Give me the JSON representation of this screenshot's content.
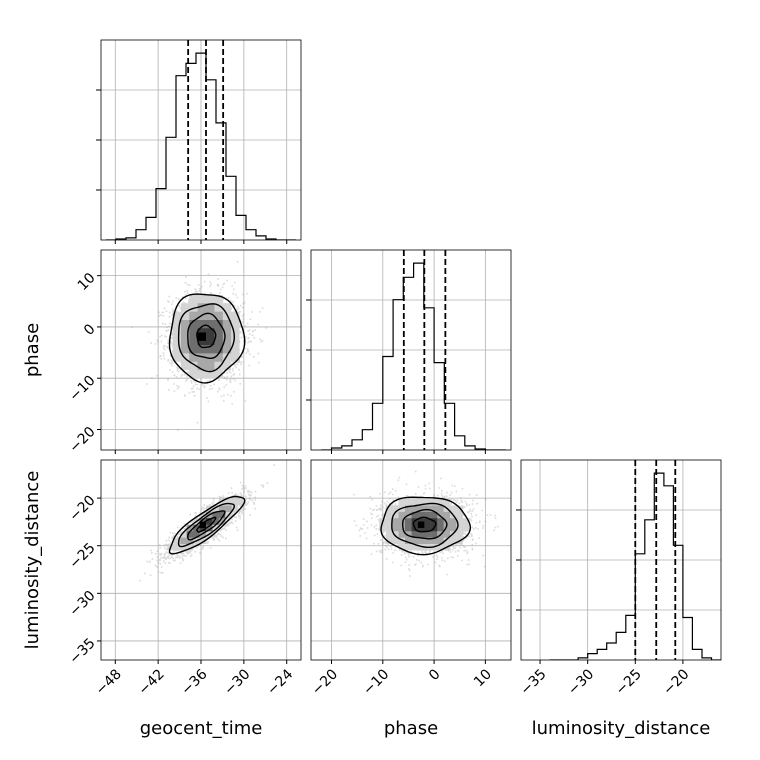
{
  "chart_data": {
    "type": "corner",
    "parameters": [
      {
        "name": "geocent_time",
        "range": [
          -50,
          -22
        ],
        "ticks": [
          -48,
          -42,
          -36,
          -30,
          -24
        ],
        "tick_labels": [
          "−48",
          "−42",
          "−36",
          "−30",
          "−24"
        ],
        "quantiles": [
          -37.8,
          -35.3,
          -32.9
        ],
        "hist_edges": [
          -49.3,
          -47.9,
          -46.5,
          -45.1,
          -43.7,
          -42.3,
          -40.9,
          -39.5,
          -38.1,
          -36.7,
          -35.3,
          -33.9,
          -32.5,
          -31.1,
          -29.7,
          -28.3,
          -26.9,
          -25.5,
          -24.1,
          -22.7
        ],
        "hist_counts": [
          0.0,
          0.005,
          0.01,
          0.05,
          0.11,
          0.25,
          0.5,
          0.8,
          0.86,
          0.91,
          0.78,
          0.57,
          0.31,
          0.12,
          0.05,
          0.02,
          0.005,
          0.0,
          0.0
        ]
      },
      {
        "name": "phase",
        "range": [
          -24,
          15
        ],
        "ticks": [
          -20,
          -10,
          0,
          10
        ],
        "tick_labels": [
          "−20",
          "−10",
          "0",
          "10"
        ],
        "quantiles": [
          -5.9,
          -1.9,
          2.2
        ],
        "hist_edges": [
          -22,
          -20,
          -18,
          -16,
          -14,
          -12,
          -10,
          -8,
          -6,
          -4,
          -2,
          0,
          2,
          4,
          6,
          8,
          10,
          12,
          14
        ],
        "hist_counts": [
          0.0,
          0.01,
          0.02,
          0.05,
          0.1,
          0.23,
          0.46,
          0.74,
          0.85,
          0.92,
          0.7,
          0.43,
          0.23,
          0.07,
          0.02,
          0.005,
          0.0,
          0.0
        ]
      },
      {
        "name": "luminosity_distance",
        "range": [
          -37,
          -16
        ],
        "ticks": [
          -35,
          -30,
          -25,
          -20
        ],
        "tick_labels": [
          "−35",
          "−30",
          "−25",
          "−20"
        ],
        "quantiles": [
          -25.0,
          -22.8,
          -20.8
        ],
        "hist_edges": [
          -34,
          -33,
          -32,
          -31,
          -30,
          -29,
          -28,
          -27,
          -26,
          -25,
          -24,
          -23,
          -22,
          -21,
          -20,
          -19,
          -18,
          -17,
          -16
        ],
        "hist_counts": [
          0.0,
          0.0,
          0.0,
          0.01,
          0.03,
          0.05,
          0.08,
          0.13,
          0.21,
          0.5,
          0.66,
          0.88,
          0.82,
          0.54,
          0.2,
          0.05,
          0.01,
          0.0
        ]
      }
    ],
    "pairs": [
      {
        "x": "geocent_time",
        "y": "phase",
        "center": [
          -35.3,
          -1.9
        ],
        "spread": [
          2.6,
          4.3
        ],
        "correlation": 0.0
      },
      {
        "x": "geocent_time",
        "y": "luminosity_distance",
        "center": [
          -35.3,
          -22.8
        ],
        "spread": [
          2.6,
          1.5
        ],
        "correlation": 0.86
      },
      {
        "x": "phase",
        "y": "luminosity_distance",
        "center": [
          -1.9,
          -22.8
        ],
        "spread": [
          4.3,
          1.5
        ],
        "correlation": 0.0
      }
    ],
    "contour_levels_sigma": [
      0.5,
      1.0,
      1.5,
      2.0
    ],
    "grid": true
  }
}
